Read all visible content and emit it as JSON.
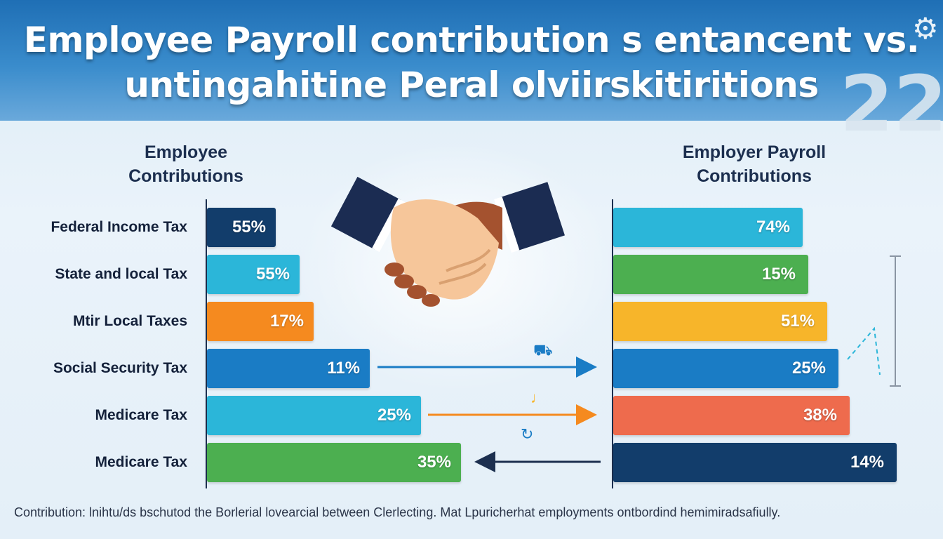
{
  "header": {
    "title_line1": "Employee Payroll contribution s entancent vs.",
    "title_line2": "untingahitine Peral olviirskitiritions",
    "deco_number": "22"
  },
  "colors": {
    "navy": "#123d6b",
    "cyan": "#2bb6d9",
    "orange": "#f58a1f",
    "blue": "#1a7cc5",
    "green": "#4caf50",
    "amber": "#f7b52a",
    "coral": "#ee6b4d",
    "header_blue": "#1f6fb5"
  },
  "chart_data": [
    {
      "type": "bar",
      "orientation": "horizontal",
      "title": "Employee Contributions",
      "categories": [
        "Federal Income Tax",
        "State and local Tax",
        "Mtir Local Taxes",
        "Social Security Tax",
        "Medicare Tax",
        "Medicare Tax"
      ],
      "values": [
        55,
        55,
        17,
        11,
        25,
        35
      ],
      "value_labels": [
        "55%",
        "55%",
        "17%",
        "11%",
        "25%",
        "35%"
      ],
      "bar_colors": [
        "#123d6b",
        "#2bb6d9",
        "#f58a1f",
        "#1a7cc5",
        "#2bb6d9",
        "#4caf50"
      ]
    },
    {
      "type": "bar",
      "orientation": "horizontal",
      "title": "Employer Payroll Contributions",
      "values": [
        74,
        15,
        51,
        25,
        38,
        14
      ],
      "value_labels": [
        "74%",
        "15%",
        "51%",
        "25%",
        "38%",
        "14%"
      ],
      "bar_colors": [
        "#2bb6d9",
        "#4caf50",
        "#f7b52a",
        "#1a7cc5",
        "#ee6b4d",
        "#123d6b"
      ]
    }
  ],
  "footer": {
    "caption": "Contribution: lnihtu/ds bschutod the Borlerial lovearcial between Clerlecting. Mat Lpuricherhat employments ontbordind hemimiradsafiully."
  }
}
